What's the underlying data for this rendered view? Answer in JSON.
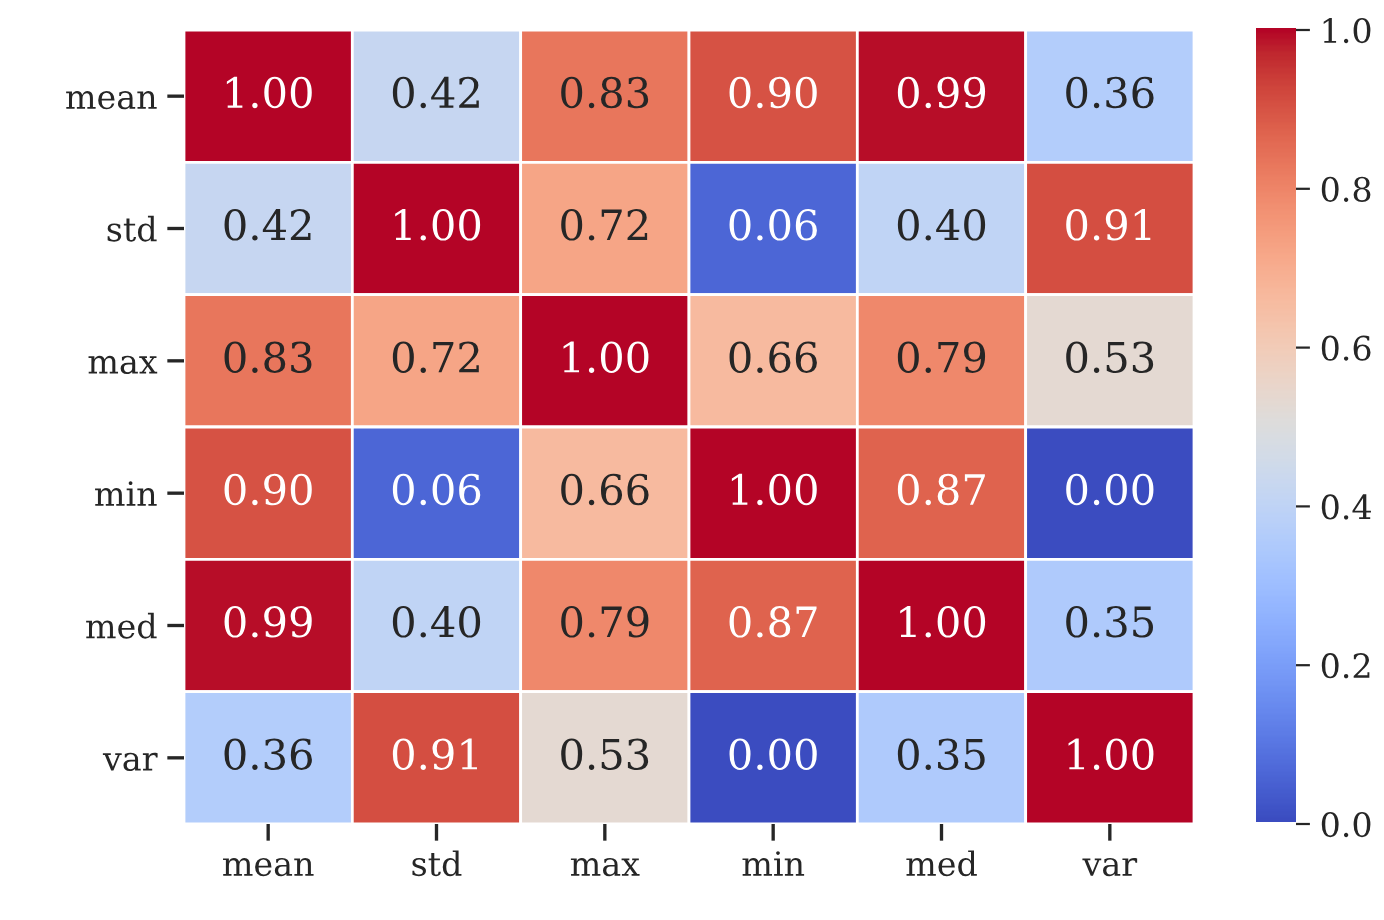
{
  "chart_data": {
    "type": "heatmap",
    "categories": [
      "mean",
      "std",
      "max",
      "min",
      "med",
      "var"
    ],
    "y_categories": [
      "mean",
      "std",
      "max",
      "min",
      "med",
      "var"
    ],
    "cells": [
      [
        1.0,
        0.42,
        0.83,
        0.9,
        0.99,
        0.36
      ],
      [
        0.42,
        1.0,
        0.72,
        0.06,
        0.4,
        0.91
      ],
      [
        0.83,
        0.72,
        1.0,
        0.66,
        0.79,
        0.53
      ],
      [
        0.9,
        0.06,
        0.66,
        1.0,
        0.87,
        0.0
      ],
      [
        0.99,
        0.4,
        0.79,
        0.87,
        1.0,
        0.35
      ],
      [
        0.36,
        0.91,
        0.53,
        0.0,
        0.35,
        1.0
      ]
    ],
    "cell_labels": [
      [
        "1.00",
        "0.42",
        "0.83",
        "0.90",
        "0.99",
        "0.36"
      ],
      [
        "0.42",
        "1.00",
        "0.72",
        "0.06",
        "0.40",
        "0.91"
      ],
      [
        "0.83",
        "0.72",
        "1.00",
        "0.66",
        "0.79",
        "0.53"
      ],
      [
        "0.90",
        "0.06",
        "0.66",
        "1.00",
        "0.87",
        "0.00"
      ],
      [
        "0.99",
        "0.40",
        "0.79",
        "0.87",
        "1.00",
        "0.35"
      ],
      [
        "0.36",
        "0.91",
        "0.53",
        "0.00",
        "0.35",
        "1.00"
      ]
    ],
    "clim": [
      0,
      1
    ],
    "cticks": [
      {
        "value": 0,
        "label": "0.0"
      },
      {
        "value": 0.2,
        "label": "0.2"
      },
      {
        "value": 0.4,
        "label": "0.4"
      },
      {
        "value": 0.6,
        "label": "0.6"
      },
      {
        "value": 0.8,
        "label": "0.8"
      },
      {
        "value": 1,
        "label": "1.0"
      }
    ]
  }
}
